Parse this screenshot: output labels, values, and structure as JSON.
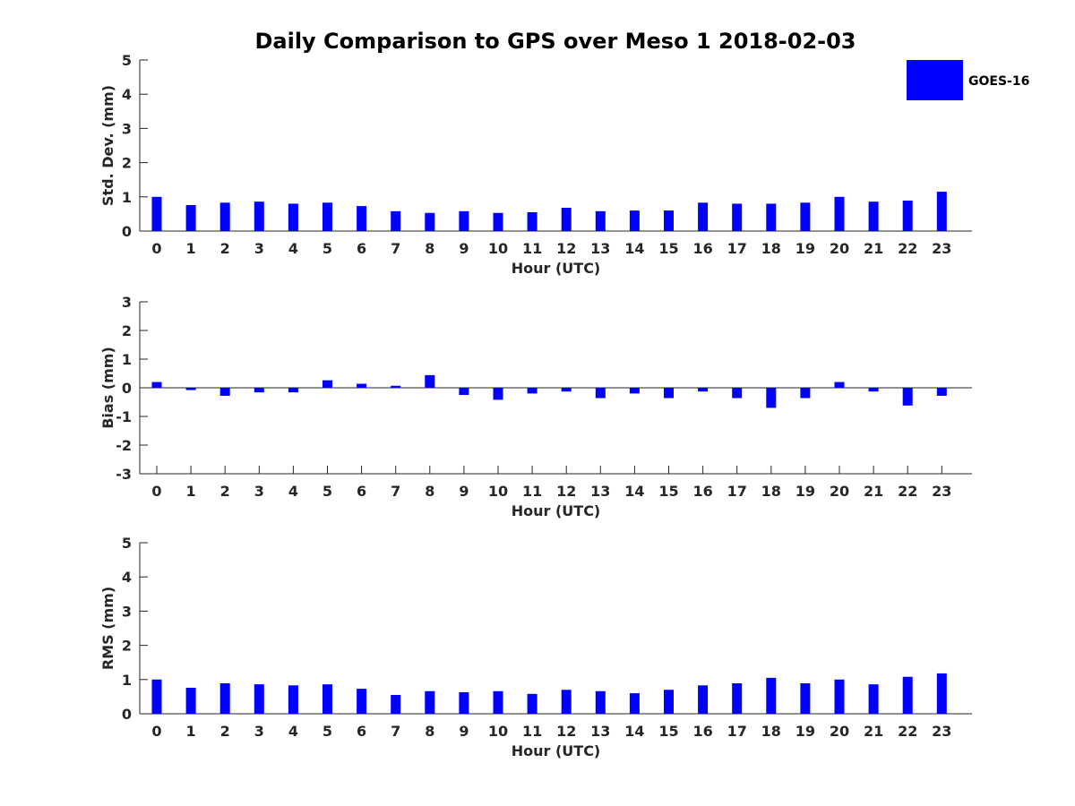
{
  "title": "Daily Comparison to GPS over Meso 1 2018-02-03",
  "legend": {
    "label": "GOES-16",
    "color": "#0000ff"
  },
  "chart_data": [
    {
      "type": "bar",
      "ylabel": "Std. Dev. (mm)",
      "xlabel": "Hour (UTC)",
      "ylim": [
        0,
        5
      ],
      "yticks": [
        0,
        1,
        2,
        3,
        4,
        5
      ],
      "categories": [
        "0",
        "1",
        "2",
        "3",
        "4",
        "5",
        "6",
        "7",
        "8",
        "9",
        "10",
        "11",
        "12",
        "13",
        "14",
        "15",
        "16",
        "17",
        "18",
        "19",
        "20",
        "21",
        "22",
        "23"
      ],
      "series": [
        {
          "name": "GOES-16",
          "values": [
            1.0,
            0.76,
            0.83,
            0.86,
            0.8,
            0.83,
            0.73,
            0.58,
            0.53,
            0.58,
            0.53,
            0.55,
            0.68,
            0.58,
            0.6,
            0.6,
            0.83,
            0.8,
            0.8,
            0.83,
            1.0,
            0.86,
            0.89,
            1.15
          ]
        }
      ]
    },
    {
      "type": "bar",
      "ylabel": "Bias (mm)",
      "xlabel": "Hour (UTC)",
      "ylim": [
        -3,
        3
      ],
      "yticks": [
        -3,
        -2,
        -1,
        0,
        1,
        2,
        3
      ],
      "categories": [
        "0",
        "1",
        "2",
        "3",
        "4",
        "5",
        "6",
        "7",
        "8",
        "9",
        "10",
        "11",
        "12",
        "13",
        "14",
        "15",
        "16",
        "17",
        "18",
        "19",
        "20",
        "21",
        "22",
        "23"
      ],
      "series": [
        {
          "name": "GOES-16",
          "values": [
            0.2,
            -0.08,
            -0.28,
            -0.16,
            -0.16,
            0.26,
            0.14,
            0.07,
            0.44,
            -0.25,
            -0.42,
            -0.2,
            -0.13,
            -0.36,
            -0.2,
            -0.36,
            -0.13,
            -0.36,
            -0.7,
            -0.36,
            0.2,
            -0.13,
            -0.62,
            -0.28
          ]
        }
      ]
    },
    {
      "type": "bar",
      "ylabel": "RMS (mm)",
      "xlabel": "Hour (UTC)",
      "ylim": [
        0,
        5
      ],
      "yticks": [
        0,
        1,
        2,
        3,
        4,
        5
      ],
      "categories": [
        "0",
        "1",
        "2",
        "3",
        "4",
        "5",
        "6",
        "7",
        "8",
        "9",
        "10",
        "11",
        "12",
        "13",
        "14",
        "15",
        "16",
        "17",
        "18",
        "19",
        "20",
        "21",
        "22",
        "23"
      ],
      "series": [
        {
          "name": "GOES-16",
          "values": [
            1.0,
            0.76,
            0.89,
            0.86,
            0.83,
            0.86,
            0.73,
            0.55,
            0.66,
            0.63,
            0.66,
            0.58,
            0.7,
            0.66,
            0.6,
            0.7,
            0.83,
            0.89,
            1.05,
            0.89,
            1.0,
            0.86,
            1.08,
            1.18
          ]
        }
      ]
    }
  ]
}
